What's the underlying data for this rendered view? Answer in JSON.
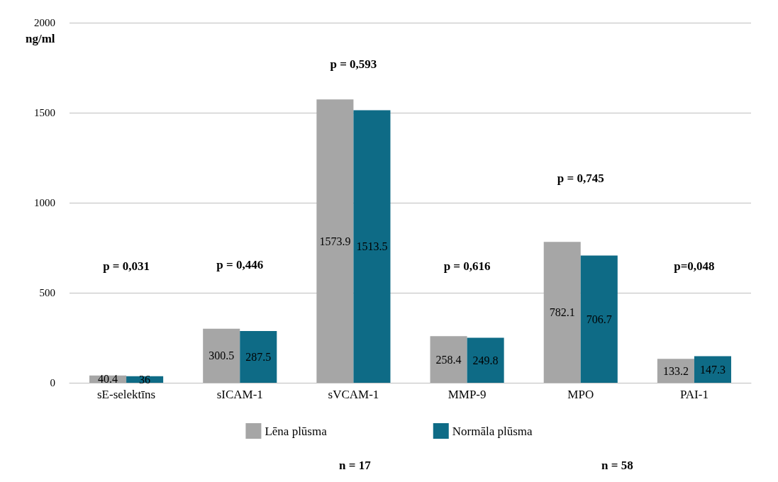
{
  "chart_data": {
    "type": "bar",
    "ylabel": "ng/ml",
    "categories": [
      "sE-selektīns",
      "sICAM-1",
      "sVCAM-1",
      "MMP-9",
      "MPO",
      "PAI-1"
    ],
    "series": [
      {
        "name": "Lēna plūsma",
        "color": "#a6a6a6",
        "values": [
          40.4,
          300.5,
          1573.9,
          258.4,
          782.1,
          133.2
        ]
      },
      {
        "name": "Normāla plūsma",
        "color": "#0e6b86",
        "values": [
          36,
          287.5,
          1513.5,
          249.8,
          706.7,
          147.3
        ]
      }
    ],
    "ylim": [
      0,
      2000
    ],
    "yticks": [
      0,
      500,
      1000,
      1500,
      2000
    ],
    "grid": "y",
    "data_labels": true,
    "legend": "bottom",
    "annotations": [
      "p = 0,031",
      "p = 0,446",
      "p = 0,593",
      "p = 0,616",
      "p = 0,745",
      "p=0,048",
      "n = 17",
      "n = 58"
    ]
  }
}
